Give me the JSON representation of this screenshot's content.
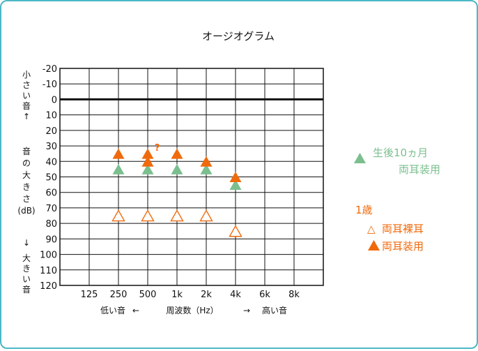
{
  "chart_data": {
    "type": "scatter",
    "title": "オージオグラム",
    "x_categories": [
      "125",
      "250",
      "500",
      "1k",
      "2k",
      "4k",
      "6k",
      "8k"
    ],
    "y_ticks": [
      "-20",
      "-10",
      "0",
      "10",
      "20",
      "30",
      "40",
      "50",
      "60",
      "70",
      "80",
      "90",
      "100",
      "110",
      "120"
    ],
    "ylim": [
      -20,
      120
    ],
    "y_inverted": true,
    "grid": true,
    "reference_line_y": 0,
    "xlabel": {
      "low": "低い音",
      "left_arrow": "←",
      "center": "周波数（Hz）",
      "right_arrow": "→",
      "high": "高い音"
    },
    "ylabel": {
      "small": "小さい音",
      "up_arrow": "↑",
      "main": "音の大きさ",
      "unit": "(dB)",
      "down_arrow": "↓",
      "large": "大きい音"
    },
    "series": [
      {
        "name": "生後10ヵ月 両耳装用",
        "marker": "triangle-filled",
        "color": "#7bbf8f",
        "points": [
          {
            "x": "250",
            "y": 45
          },
          {
            "x": "500",
            "y": 45
          },
          {
            "x": "1k",
            "y": 45
          },
          {
            "x": "2k",
            "y": 45
          },
          {
            "x": "4k",
            "y": 55
          }
        ]
      },
      {
        "name": "1歳 両耳裸耳",
        "marker": "triangle-open",
        "color": "#f06a0c",
        "points": [
          {
            "x": "250",
            "y": 75
          },
          {
            "x": "500",
            "y": 75
          },
          {
            "x": "1k",
            "y": 75
          },
          {
            "x": "2k",
            "y": 75
          },
          {
            "x": "4k",
            "y": 85
          }
        ]
      },
      {
        "name": "1歳 両耳装用",
        "marker": "triangle-filled",
        "color": "#f06a0c",
        "points": [
          {
            "x": "250",
            "y": 35
          },
          {
            "x": "500",
            "y": 35
          },
          {
            "x": "500",
            "y": 40
          },
          {
            "x": "1k",
            "y": 35
          },
          {
            "x": "2k",
            "y": 40
          },
          {
            "x": "4k",
            "y": 50
          }
        ]
      }
    ],
    "annotations": [
      {
        "text": "?",
        "x": "500",
        "y": 34,
        "color": "#f06a0c"
      }
    ],
    "legend": {
      "placement": "right",
      "groups": [
        {
          "marker": "triangle-filled",
          "color": "#7bbf8f",
          "lines": [
            "生後10ヵ月",
            "両耳装用"
          ]
        },
        {
          "heading": "1歳",
          "color": "#f06a0c"
        },
        {
          "marker_text": "△",
          "color": "#f06a0c",
          "label": "両耳裸耳"
        },
        {
          "marker": "triangle-filled",
          "color": "#f06a0c",
          "label": "両耳装用"
        }
      ]
    }
  }
}
